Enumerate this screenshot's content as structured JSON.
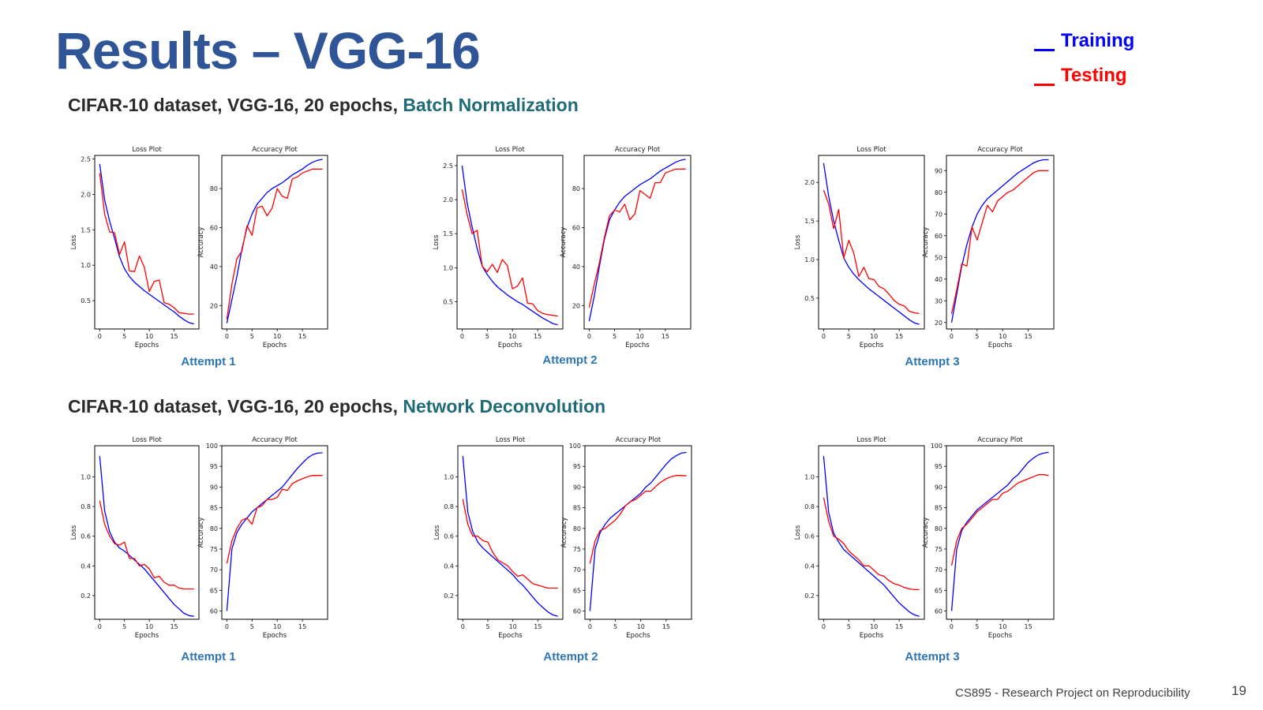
{
  "slide": {
    "title": "Results – VGG-16",
    "legend": [
      {
        "label": "Training",
        "color": "#0000FF"
      },
      {
        "label": "Testing",
        "color": "#FF0000"
      }
    ],
    "sections": [
      {
        "prefix": "CIFAR-10 dataset, VGG-16, 20 epochs, ",
        "method": "Batch Normalization"
      },
      {
        "prefix": "CIFAR-10 dataset, VGG-16, 20 epochs, ",
        "method": "Network Deconvolution"
      }
    ],
    "attempt_labels": [
      "Attempt 1",
      "Attempt 2",
      "Attempt 3"
    ],
    "footer": "CS895 - Research Project on Reproducibility",
    "page_number": "19"
  },
  "chart_data": [
    {
      "id": "bn-a1-loss",
      "type": "line",
      "title": "Loss Plot",
      "xlabel": "Epochs",
      "ylabel": "Loss",
      "xlim": [
        -1,
        20
      ],
      "ylim": [
        0.1,
        2.55
      ],
      "xticks": [
        0,
        5,
        10,
        15
      ],
      "yticks": [
        0.5,
        1.0,
        1.5,
        2.0,
        2.5
      ],
      "series": [
        {
          "color": "#0000FF",
          "values": [
            2.43,
            1.92,
            1.62,
            1.38,
            1.12,
            0.95,
            0.84,
            0.76,
            0.7,
            0.64,
            0.59,
            0.54,
            0.49,
            0.44,
            0.39,
            0.34,
            0.28,
            0.23,
            0.19,
            0.17
          ]
        },
        {
          "color": "#FF0000",
          "values": [
            2.3,
            1.72,
            1.47,
            1.46,
            1.15,
            1.33,
            0.92,
            0.91,
            1.13,
            0.97,
            0.63,
            0.77,
            0.79,
            0.47,
            0.45,
            0.4,
            0.33,
            0.32,
            0.31,
            0.31
          ]
        }
      ]
    },
    {
      "id": "bn-a1-acc",
      "type": "line",
      "title": "Accuracy Plot",
      "xlabel": "Epochs",
      "ylabel": "Accuracy",
      "xlim": [
        -1,
        20
      ],
      "ylim": [
        8,
        97
      ],
      "xticks": [
        0,
        5,
        10,
        15
      ],
      "yticks": [
        20,
        40,
        60,
        80
      ],
      "series": [
        {
          "color": "#0000FF",
          "values": [
            11,
            23,
            35,
            49,
            60,
            67,
            72,
            75,
            78,
            80,
            81.5,
            83,
            85,
            87,
            88.5,
            90,
            92,
            93.5,
            94.5,
            95
          ]
        },
        {
          "color": "#FF0000",
          "values": [
            13,
            31,
            44,
            48,
            61,
            56,
            70,
            71,
            66,
            70,
            80,
            76,
            75,
            85,
            86,
            88,
            89,
            90,
            90,
            90
          ]
        }
      ]
    },
    {
      "id": "bn-a2-loss",
      "type": "line",
      "title": "Loss Plot",
      "xlabel": "Epochs",
      "ylabel": "Loss",
      "xlim": [
        -1,
        20
      ],
      "ylim": [
        0.1,
        2.65
      ],
      "xticks": [
        0,
        5,
        10,
        15
      ],
      "yticks": [
        0.5,
        1.0,
        1.5,
        2.0,
        2.5
      ],
      "series": [
        {
          "color": "#0000FF",
          "values": [
            2.5,
            1.95,
            1.6,
            1.28,
            1.02,
            0.9,
            0.8,
            0.72,
            0.66,
            0.6,
            0.55,
            0.5,
            0.46,
            0.41,
            0.36,
            0.31,
            0.26,
            0.22,
            0.18,
            0.16
          ]
        },
        {
          "color": "#FF0000",
          "values": [
            2.15,
            1.78,
            1.5,
            1.55,
            1.02,
            0.94,
            1.05,
            0.93,
            1.12,
            1.03,
            0.69,
            0.73,
            0.85,
            0.48,
            0.47,
            0.37,
            0.33,
            0.31,
            0.3,
            0.29
          ]
        }
      ]
    },
    {
      "id": "bn-a2-acc",
      "type": "line",
      "title": "Accuracy Plot",
      "xlabel": "Epochs",
      "ylabel": "Accuracy",
      "xlim": [
        -1,
        20
      ],
      "ylim": [
        8,
        97
      ],
      "xticks": [
        0,
        5,
        10,
        15
      ],
      "yticks": [
        20,
        40,
        60,
        80
      ],
      "series": [
        {
          "color": "#0000FF",
          "values": [
            12,
            25,
            40,
            54,
            64,
            69,
            73,
            76,
            78,
            80,
            82,
            83.5,
            85,
            87,
            89,
            90.5,
            92,
            93.5,
            94.5,
            95
          ]
        },
        {
          "color": "#FF0000",
          "values": [
            19,
            31,
            42,
            55,
            66,
            69,
            68,
            72,
            64,
            67,
            79,
            77,
            75,
            83,
            83,
            88,
            89,
            90,
            90,
            90
          ]
        }
      ]
    },
    {
      "id": "bn-a3-loss",
      "type": "line",
      "title": "Loss Plot",
      "xlabel": "Epochs",
      "ylabel": "Loss",
      "xlim": [
        -1,
        20
      ],
      "ylim": [
        0.1,
        2.35
      ],
      "xticks": [
        0,
        5,
        10,
        15
      ],
      "yticks": [
        0.5,
        1.0,
        1.5,
        2.0
      ],
      "series": [
        {
          "color": "#0000FF",
          "values": [
            2.25,
            1.82,
            1.5,
            1.25,
            1.02,
            0.9,
            0.81,
            0.74,
            0.68,
            0.62,
            0.57,
            0.52,
            0.47,
            0.42,
            0.37,
            0.32,
            0.27,
            0.22,
            0.18,
            0.16
          ]
        },
        {
          "color": "#FF0000",
          "values": [
            1.9,
            1.72,
            1.4,
            1.65,
            1.02,
            1.25,
            1.08,
            0.78,
            0.9,
            0.75,
            0.74,
            0.65,
            0.62,
            0.55,
            0.47,
            0.42,
            0.4,
            0.33,
            0.31,
            0.3
          ]
        }
      ]
    },
    {
      "id": "bn-a3-acc",
      "type": "line",
      "title": "Accuracy Plot",
      "xlabel": "Epochs",
      "ylabel": "Accuracy",
      "xlim": [
        -1,
        20
      ],
      "ylim": [
        17,
        97
      ],
      "xticks": [
        0,
        5,
        10,
        15
      ],
      "yticks": [
        20,
        30,
        40,
        50,
        60,
        70,
        80,
        90
      ],
      "series": [
        {
          "color": "#0000FF",
          "values": [
            20,
            33,
            46,
            56,
            64,
            70,
            74,
            77,
            79,
            81,
            83,
            85,
            87,
            89,
            90.5,
            92,
            93.5,
            94.5,
            95,
            95
          ]
        },
        {
          "color": "#FF0000",
          "values": [
            24,
            35,
            47,
            46,
            64,
            58,
            66,
            74,
            71,
            76,
            78,
            80,
            81,
            83,
            85,
            87,
            89,
            90,
            90,
            90
          ]
        }
      ]
    },
    {
      "id": "nd-a1-loss",
      "type": "line",
      "title": "Loss Plot",
      "xlabel": "Epochs",
      "ylabel": "Loss",
      "xlim": [
        -1,
        20
      ],
      "ylim": [
        0.04,
        1.21
      ],
      "xticks": [
        0,
        5,
        10,
        15
      ],
      "yticks": [
        0.2,
        0.4,
        0.6,
        0.8,
        1.0
      ],
      "series": [
        {
          "color": "#0000FF",
          "values": [
            1.14,
            0.77,
            0.63,
            0.56,
            0.52,
            0.5,
            0.47,
            0.44,
            0.41,
            0.38,
            0.34,
            0.3,
            0.26,
            0.22,
            0.18,
            0.14,
            0.11,
            0.08,
            0.065,
            0.06
          ]
        },
        {
          "color": "#FF0000",
          "values": [
            0.84,
            0.68,
            0.6,
            0.55,
            0.54,
            0.56,
            0.45,
            0.45,
            0.4,
            0.41,
            0.38,
            0.32,
            0.33,
            0.29,
            0.27,
            0.27,
            0.25,
            0.245,
            0.245,
            0.245
          ]
        }
      ]
    },
    {
      "id": "nd-a1-acc",
      "type": "line",
      "title": "Accuracy Plot",
      "xlabel": "Epochs",
      "ylabel": "Accuracy",
      "xlim": [
        -1,
        20
      ],
      "ylim": [
        58,
        100
      ],
      "xticks": [
        0,
        5,
        10,
        15
      ],
      "yticks": [
        60,
        65,
        70,
        75,
        80,
        85,
        90,
        95,
        100
      ],
      "series": [
        {
          "color": "#0000FF",
          "values": [
            60,
            75,
            79,
            81,
            82.5,
            84,
            85,
            86,
            87,
            88,
            89,
            90,
            91.5,
            93,
            94.5,
            95.8,
            97,
            97.8,
            98.2,
            98.3
          ]
        },
        {
          "color": "#FF0000",
          "values": [
            71.5,
            77,
            80,
            82,
            82.5,
            81,
            85,
            85.5,
            87,
            87,
            87.5,
            89.5,
            89.2,
            90.8,
            91.5,
            92,
            92.5,
            92.8,
            92.8,
            92.8
          ]
        }
      ]
    },
    {
      "id": "nd-a2-loss",
      "type": "line",
      "title": "Loss Plot",
      "xlabel": "Epochs",
      "ylabel": "Loss",
      "xlim": [
        -1,
        20
      ],
      "ylim": [
        0.04,
        1.21
      ],
      "xticks": [
        0,
        5,
        10,
        15
      ],
      "yticks": [
        0.2,
        0.4,
        0.6,
        0.8,
        1.0
      ],
      "series": [
        {
          "color": "#0000FF",
          "values": [
            1.14,
            0.76,
            0.63,
            0.56,
            0.52,
            0.49,
            0.46,
            0.43,
            0.4,
            0.37,
            0.34,
            0.3,
            0.27,
            0.23,
            0.19,
            0.15,
            0.12,
            0.09,
            0.07,
            0.06
          ]
        },
        {
          "color": "#FF0000",
          "values": [
            0.85,
            0.68,
            0.6,
            0.6,
            0.57,
            0.56,
            0.49,
            0.44,
            0.42,
            0.4,
            0.36,
            0.33,
            0.34,
            0.31,
            0.28,
            0.27,
            0.26,
            0.25,
            0.25,
            0.25
          ]
        }
      ]
    },
    {
      "id": "nd-a2-acc",
      "type": "line",
      "title": "Accuracy Plot",
      "xlabel": "Epochs",
      "ylabel": "Accuracy",
      "xlim": [
        -1,
        20
      ],
      "ylim": [
        58,
        100
      ],
      "xticks": [
        0,
        5,
        10,
        15
      ],
      "yticks": [
        60,
        65,
        70,
        75,
        80,
        85,
        90,
        95,
        100
      ],
      "series": [
        {
          "color": "#0000FF",
          "values": [
            60,
            75,
            79,
            81,
            82.5,
            83.5,
            84.5,
            85.5,
            86.5,
            87.5,
            88.5,
            90,
            91,
            92.5,
            94,
            95.5,
            96.8,
            97.6,
            98.2,
            98.4
          ]
        },
        {
          "color": "#FF0000",
          "values": [
            71.5,
            77,
            79.5,
            80,
            81,
            82,
            83.5,
            85.5,
            86.5,
            87,
            88,
            89,
            89,
            90.2,
            91.2,
            92,
            92.5,
            92.8,
            92.8,
            92.7
          ]
        }
      ]
    },
    {
      "id": "nd-a3-loss",
      "type": "line",
      "title": "Loss Plot",
      "xlabel": "Epochs",
      "ylabel": "Loss",
      "xlim": [
        -1,
        20
      ],
      "ylim": [
        0.04,
        1.21
      ],
      "xticks": [
        0,
        5,
        10,
        15
      ],
      "yticks": [
        0.2,
        0.4,
        0.6,
        0.8,
        1.0
      ],
      "series": [
        {
          "color": "#0000FF",
          "values": [
            1.14,
            0.76,
            0.62,
            0.56,
            0.51,
            0.48,
            0.45,
            0.42,
            0.39,
            0.36,
            0.33,
            0.3,
            0.27,
            0.23,
            0.19,
            0.15,
            0.12,
            0.09,
            0.07,
            0.06
          ]
        },
        {
          "color": "#FF0000",
          "values": [
            0.86,
            0.7,
            0.6,
            0.58,
            0.55,
            0.5,
            0.47,
            0.44,
            0.4,
            0.4,
            0.37,
            0.34,
            0.33,
            0.3,
            0.28,
            0.27,
            0.255,
            0.245,
            0.24,
            0.24
          ]
        }
      ]
    },
    {
      "id": "nd-a3-acc",
      "type": "line",
      "title": "Accuracy Plot",
      "xlabel": "Epochs",
      "ylabel": "Accuracy",
      "xlim": [
        -1,
        20
      ],
      "ylim": [
        58,
        100
      ],
      "xticks": [
        0,
        5,
        10,
        15
      ],
      "yticks": [
        60,
        65,
        70,
        75,
        80,
        85,
        90,
        95,
        100
      ],
      "series": [
        {
          "color": "#0000FF",
          "values": [
            60,
            75,
            79.5,
            81.5,
            83,
            84.5,
            85.5,
            86.5,
            87.5,
            88.5,
            89.5,
            90.5,
            92,
            93,
            94.5,
            96,
            97,
            97.8,
            98.2,
            98.4
          ]
        },
        {
          "color": "#FF0000",
          "values": [
            71,
            77,
            80,
            81,
            82.5,
            84,
            85,
            86,
            87,
            87,
            88.5,
            89,
            90,
            91,
            91.5,
            92,
            92.5,
            93,
            93,
            92.8
          ]
        }
      ]
    }
  ]
}
